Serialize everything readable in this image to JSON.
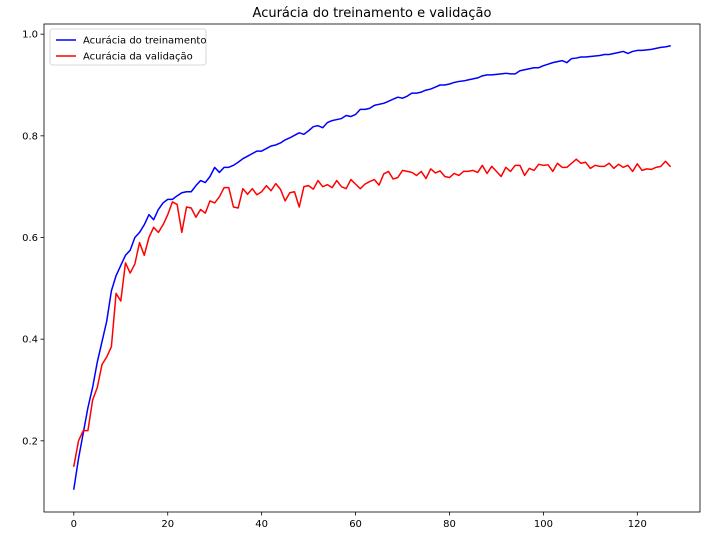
{
  "chart_data": {
    "type": "line",
    "title": "Acurácia do treinamento e validação",
    "xlabel": "",
    "ylabel": "",
    "xlim": [
      -6.35,
      133.35
    ],
    "ylim": [
      0.06,
      1.02
    ],
    "xticks": [
      0,
      20,
      40,
      60,
      80,
      100,
      120
    ],
    "yticks": [
      0.2,
      0.4,
      0.6,
      0.8,
      1.0
    ],
    "ytick_labels": [
      "0.2",
      "0.4",
      "0.6",
      "0.8",
      "1.0"
    ],
    "grid": false,
    "legend_position": "upper-left",
    "series": [
      {
        "name": "Acurácia do treinamento",
        "color": "#0000ff",
        "x": [
          0,
          1,
          2,
          3,
          4,
          5,
          6,
          7,
          8,
          9,
          10,
          11,
          12,
          13,
          14,
          15,
          16,
          17,
          18,
          19,
          20,
          21,
          22,
          23,
          24,
          25,
          26,
          27,
          28,
          29,
          30,
          31,
          32,
          33,
          34,
          35,
          36,
          37,
          38,
          39,
          40,
          41,
          42,
          43,
          44,
          45,
          46,
          47,
          48,
          49,
          50,
          51,
          52,
          53,
          54,
          55,
          56,
          57,
          58,
          59,
          60,
          61,
          62,
          63,
          64,
          65,
          66,
          67,
          68,
          69,
          70,
          71,
          72,
          73,
          74,
          75,
          76,
          77,
          78,
          79,
          80,
          81,
          82,
          83,
          84,
          85,
          86,
          87,
          88,
          89,
          90,
          91,
          92,
          93,
          94,
          95,
          96,
          97,
          98,
          99,
          100,
          101,
          102,
          103,
          104,
          105,
          106,
          107,
          108,
          109,
          110,
          111,
          112,
          113,
          114,
          115,
          116,
          117,
          118,
          119,
          120,
          121,
          122,
          123,
          124,
          125,
          126,
          127
        ],
        "values": [
          0.105,
          0.165,
          0.215,
          0.265,
          0.305,
          0.355,
          0.395,
          0.435,
          0.495,
          0.525,
          0.545,
          0.565,
          0.575,
          0.6,
          0.61,
          0.625,
          0.645,
          0.635,
          0.655,
          0.668,
          0.675,
          0.675,
          0.682,
          0.688,
          0.69,
          0.69,
          0.702,
          0.712,
          0.708,
          0.72,
          0.738,
          0.728,
          0.738,
          0.738,
          0.742,
          0.748,
          0.755,
          0.76,
          0.765,
          0.77,
          0.77,
          0.775,
          0.78,
          0.782,
          0.786,
          0.792,
          0.796,
          0.801,
          0.806,
          0.803,
          0.81,
          0.818,
          0.82,
          0.816,
          0.826,
          0.83,
          0.832,
          0.834,
          0.84,
          0.838,
          0.842,
          0.852,
          0.852,
          0.854,
          0.86,
          0.862,
          0.864,
          0.868,
          0.872,
          0.876,
          0.874,
          0.878,
          0.884,
          0.884,
          0.886,
          0.89,
          0.892,
          0.896,
          0.9,
          0.9,
          0.902,
          0.905,
          0.907,
          0.908,
          0.91,
          0.912,
          0.914,
          0.918,
          0.92,
          0.92,
          0.921,
          0.922,
          0.923,
          0.922,
          0.922,
          0.928,
          0.93,
          0.932,
          0.934,
          0.934,
          0.938,
          0.941,
          0.944,
          0.946,
          0.948,
          0.944,
          0.952,
          0.953,
          0.955,
          0.955,
          0.956,
          0.957,
          0.958,
          0.96,
          0.96,
          0.962,
          0.964,
          0.966,
          0.962,
          0.966,
          0.968,
          0.968,
          0.969,
          0.97,
          0.972,
          0.974,
          0.975,
          0.977
        ]
      },
      {
        "name": "Acurácia da validação",
        "color": "#ff0000",
        "x": [
          0,
          1,
          2,
          3,
          4,
          5,
          6,
          7,
          8,
          9,
          10,
          11,
          12,
          13,
          14,
          15,
          16,
          17,
          18,
          19,
          20,
          21,
          22,
          23,
          24,
          25,
          26,
          27,
          28,
          29,
          30,
          31,
          32,
          33,
          34,
          35,
          36,
          37,
          38,
          39,
          40,
          41,
          42,
          43,
          44,
          45,
          46,
          47,
          48,
          49,
          50,
          51,
          52,
          53,
          54,
          55,
          56,
          57,
          58,
          59,
          60,
          61,
          62,
          63,
          64,
          65,
          66,
          67,
          68,
          69,
          70,
          71,
          72,
          73,
          74,
          75,
          76,
          77,
          78,
          79,
          80,
          81,
          82,
          83,
          84,
          85,
          86,
          87,
          88,
          89,
          90,
          91,
          92,
          93,
          94,
          95,
          96,
          97,
          98,
          99,
          100,
          101,
          102,
          103,
          104,
          105,
          106,
          107,
          108,
          109,
          110,
          111,
          112,
          113,
          114,
          115,
          116,
          117,
          118,
          119,
          120,
          121,
          122,
          123,
          124,
          125,
          126,
          127
        ],
        "values": [
          0.15,
          0.2,
          0.22,
          0.22,
          0.28,
          0.305,
          0.35,
          0.365,
          0.385,
          0.49,
          0.475,
          0.55,
          0.53,
          0.548,
          0.59,
          0.565,
          0.6,
          0.62,
          0.61,
          0.625,
          0.645,
          0.67,
          0.665,
          0.61,
          0.66,
          0.658,
          0.64,
          0.655,
          0.648,
          0.672,
          0.668,
          0.68,
          0.698,
          0.698,
          0.66,
          0.658,
          0.696,
          0.685,
          0.696,
          0.684,
          0.69,
          0.702,
          0.692,
          0.706,
          0.695,
          0.672,
          0.688,
          0.69,
          0.66,
          0.7,
          0.702,
          0.695,
          0.712,
          0.7,
          0.704,
          0.698,
          0.712,
          0.7,
          0.696,
          0.714,
          0.705,
          0.696,
          0.705,
          0.71,
          0.714,
          0.703,
          0.725,
          0.73,
          0.715,
          0.718,
          0.732,
          0.73,
          0.728,
          0.722,
          0.73,
          0.716,
          0.735,
          0.727,
          0.731,
          0.72,
          0.718,
          0.726,
          0.722,
          0.73,
          0.73,
          0.732,
          0.728,
          0.742,
          0.726,
          0.74,
          0.73,
          0.72,
          0.738,
          0.73,
          0.742,
          0.742,
          0.722,
          0.736,
          0.732,
          0.744,
          0.742,
          0.743,
          0.73,
          0.746,
          0.738,
          0.738,
          0.746,
          0.754,
          0.746,
          0.748,
          0.736,
          0.742,
          0.74,
          0.74,
          0.746,
          0.736,
          0.744,
          0.738,
          0.742,
          0.73,
          0.745,
          0.732,
          0.735,
          0.734,
          0.738,
          0.74,
          0.75,
          0.74
        ]
      }
    ]
  }
}
